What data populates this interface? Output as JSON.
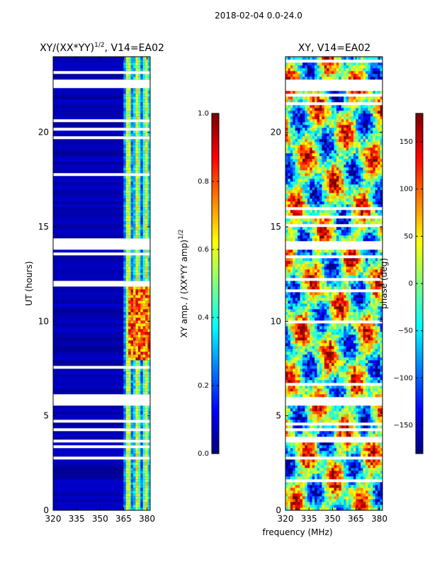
{
  "suptitle": "2018-02-04 0.0-24.0",
  "xlabel_shared": "frequency (MHz)",
  "chart_data": [
    {
      "type": "heatmap",
      "title_main": "XY/(XX*YY)",
      "title_exp": "1/2",
      "title_suffix": ", V14=EA02",
      "ylabel": "UT (hours)",
      "xlim": [
        320,
        382
      ],
      "ylim": [
        0,
        24
      ],
      "xticks": [
        320,
        335,
        350,
        365,
        380
      ],
      "yticks": [
        0,
        5,
        10,
        15,
        20
      ],
      "colorbar": {
        "label_main": "XY amp. / (XX*YY amp)",
        "label_exp": "1/2",
        "range": [
          0.0,
          1.0
        ],
        "ticks": [
          "0.0",
          "0.2",
          "0.4",
          "0.6",
          "0.8",
          "1.0"
        ],
        "colormap": "jet"
      },
      "flagged_ut_bands": [
        [
          22.4,
          22.8
        ],
        [
          5.6,
          6.0
        ],
        [
          13.8,
          14.2
        ]
      ],
      "bright_channel_range_mhz": [
        364,
        381
      ],
      "peak_amplitude_ut_range": [
        8,
        12
      ]
    },
    {
      "type": "heatmap",
      "title": "XY, V14=EA02",
      "xlim": [
        320,
        382
      ],
      "ylim": [
        0,
        24
      ],
      "xticks": [
        320,
        335,
        350,
        365,
        380
      ],
      "yticks": [
        0,
        5,
        10,
        15,
        20
      ],
      "colorbar": {
        "label": "phase (deg)",
        "range": [
          -180,
          180
        ],
        "ticks": [
          "−150",
          "−100",
          "−50",
          "0",
          "50",
          "100",
          "150"
        ],
        "tick_values": [
          -150,
          -100,
          -50,
          0,
          50,
          100,
          150
        ],
        "colormap": "jet"
      },
      "flagged_ut_bands": [
        [
          22.4,
          22.8
        ],
        [
          5.6,
          6.0
        ],
        [
          13.8,
          14.2
        ]
      ]
    }
  ]
}
